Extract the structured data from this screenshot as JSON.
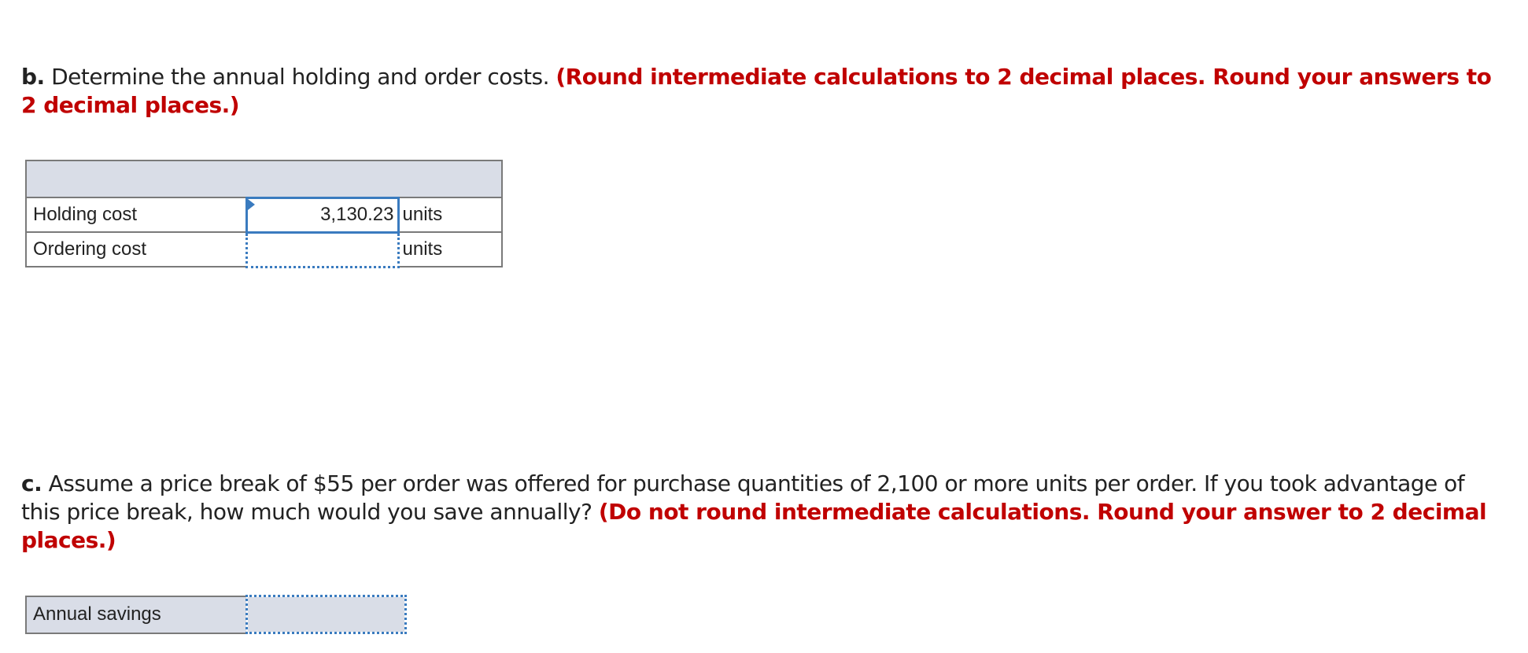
{
  "part_b": {
    "label": "b.",
    "text": " Determine the annual holding and order costs. ",
    "instruction": "(Round intermediate calculations to 2 decimal places. Round your answers to 2 decimal places.)",
    "rows": [
      {
        "label": "Holding cost",
        "value": "3,130.23",
        "unit": "units"
      },
      {
        "label": "Ordering cost",
        "value": "",
        "unit": "units"
      }
    ]
  },
  "part_c": {
    "label": "c.",
    "text": " Assume a price break of $55 per order was offered for purchase quantities of 2,100 or more units per order. If you took advantage of this price break, how much would you save annually? ",
    "instruction": "(Do not round intermediate calculations. Round your answer to 2 decimal places.)",
    "row": {
      "label": "Annual savings",
      "value": ""
    }
  },
  "colors": {
    "instruction": "#c00000",
    "input_border": "#3a7bbf",
    "header_fill": "#d9dde7"
  }
}
